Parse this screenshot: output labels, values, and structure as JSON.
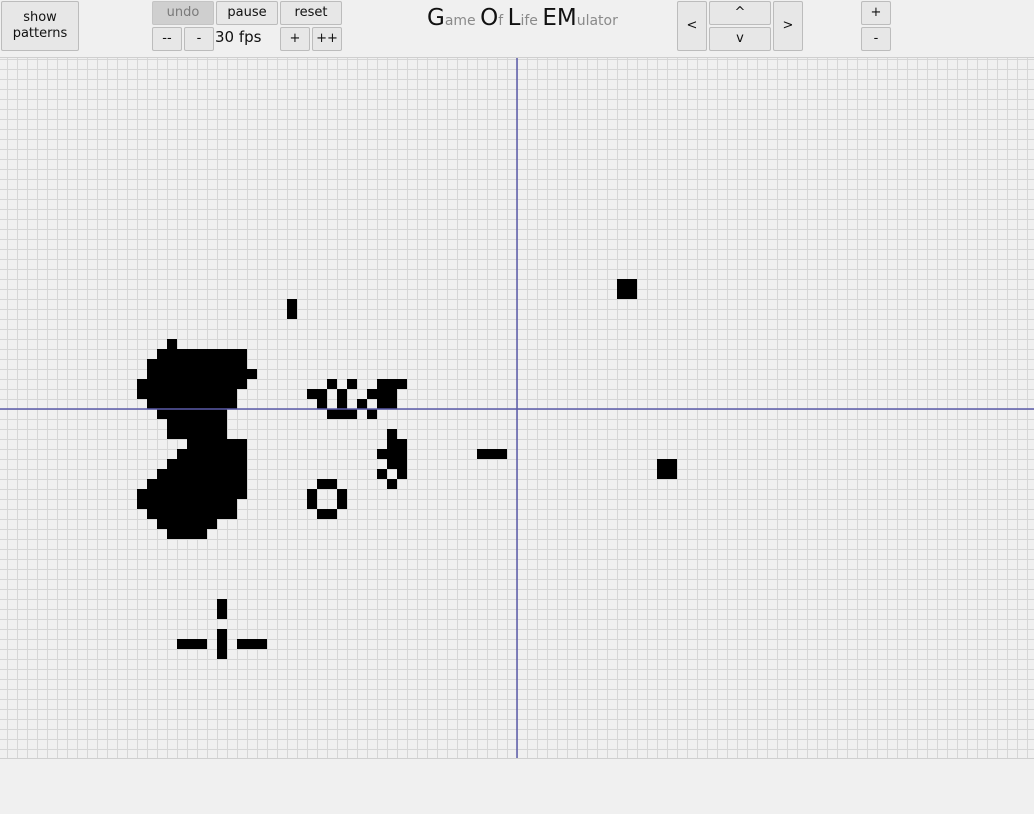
{
  "toolbar": {
    "show_patterns_label": "show\npatterns",
    "undo_label": "undo",
    "pause_label": "pause",
    "reset_label": "reset",
    "slowest_label": "--",
    "slower_label": "-",
    "fps_text": "30 fps",
    "faster_label": "+",
    "fastest_label": "++"
  },
  "title": {
    "parts": [
      {
        "text": "G",
        "size": "big"
      },
      {
        "text": "ame ",
        "size": "small"
      },
      {
        "text": "O",
        "size": "big"
      },
      {
        "text": "f ",
        "size": "small"
      },
      {
        "text": "L",
        "size": "big"
      },
      {
        "text": "ife ",
        "size": "small"
      },
      {
        "text": "EM",
        "size": "big"
      },
      {
        "text": "ulator",
        "size": "small"
      }
    ]
  },
  "navigation": {
    "left_label": "<",
    "up_label": "^",
    "down_label": "v",
    "right_label": ">"
  },
  "zoom": {
    "in_label": "+",
    "out_label": "-"
  },
  "board": {
    "colors": {
      "background": "#f0f0f0",
      "grid_line": "#d6d6d6",
      "axis_line": "#5a5aa8",
      "live_cell": "#000000"
    },
    "axis_origin_cell": [
      51,
      35
    ],
    "live_cells": [
      [
        16,
        28
      ],
      [
        15,
        29
      ],
      [
        16,
        29
      ],
      [
        17,
        29
      ],
      [
        18,
        29
      ],
      [
        19,
        29
      ],
      [
        20,
        29
      ],
      [
        21,
        29
      ],
      [
        22,
        29
      ],
      [
        23,
        29
      ],
      [
        14,
        30
      ],
      [
        15,
        30
      ],
      [
        16,
        30
      ],
      [
        17,
        30
      ],
      [
        18,
        30
      ],
      [
        19,
        30
      ],
      [
        20,
        30
      ],
      [
        21,
        30
      ],
      [
        22,
        30
      ],
      [
        23,
        30
      ],
      [
        14,
        31
      ],
      [
        15,
        31
      ],
      [
        16,
        31
      ],
      [
        17,
        31
      ],
      [
        18,
        31
      ],
      [
        19,
        31
      ],
      [
        20,
        31
      ],
      [
        21,
        31
      ],
      [
        22,
        31
      ],
      [
        23,
        31
      ],
      [
        24,
        31
      ],
      [
        13,
        32
      ],
      [
        14,
        32
      ],
      [
        15,
        32
      ],
      [
        16,
        32
      ],
      [
        17,
        32
      ],
      [
        18,
        32
      ],
      [
        19,
        32
      ],
      [
        20,
        32
      ],
      [
        21,
        32
      ],
      [
        22,
        32
      ],
      [
        23,
        32
      ],
      [
        13,
        33
      ],
      [
        14,
        33
      ],
      [
        15,
        33
      ],
      [
        16,
        33
      ],
      [
        17,
        33
      ],
      [
        18,
        33
      ],
      [
        19,
        33
      ],
      [
        20,
        33
      ],
      [
        21,
        33
      ],
      [
        22,
        33
      ],
      [
        14,
        34
      ],
      [
        15,
        34
      ],
      [
        16,
        34
      ],
      [
        17,
        34
      ],
      [
        18,
        34
      ],
      [
        19,
        34
      ],
      [
        20,
        34
      ],
      [
        21,
        34
      ],
      [
        22,
        34
      ],
      [
        15,
        35
      ],
      [
        16,
        35
      ],
      [
        17,
        35
      ],
      [
        18,
        35
      ],
      [
        19,
        35
      ],
      [
        20,
        35
      ],
      [
        21,
        35
      ],
      [
        16,
        36
      ],
      [
        17,
        36
      ],
      [
        18,
        36
      ],
      [
        19,
        36
      ],
      [
        20,
        36
      ],
      [
        21,
        36
      ],
      [
        16,
        37
      ],
      [
        17,
        37
      ],
      [
        18,
        37
      ],
      [
        19,
        37
      ],
      [
        20,
        37
      ],
      [
        21,
        37
      ],
      [
        18,
        38
      ],
      [
        19,
        38
      ],
      [
        20,
        38
      ],
      [
        21,
        38
      ],
      [
        22,
        38
      ],
      [
        23,
        38
      ],
      [
        17,
        39
      ],
      [
        18,
        39
      ],
      [
        19,
        39
      ],
      [
        20,
        39
      ],
      [
        21,
        39
      ],
      [
        22,
        39
      ],
      [
        23,
        39
      ],
      [
        16,
        40
      ],
      [
        17,
        40
      ],
      [
        18,
        40
      ],
      [
        19,
        40
      ],
      [
        20,
        40
      ],
      [
        21,
        40
      ],
      [
        22,
        40
      ],
      [
        23,
        40
      ],
      [
        15,
        41
      ],
      [
        16,
        41
      ],
      [
        17,
        41
      ],
      [
        18,
        41
      ],
      [
        19,
        41
      ],
      [
        20,
        41
      ],
      [
        21,
        41
      ],
      [
        22,
        41
      ],
      [
        23,
        41
      ],
      [
        14,
        42
      ],
      [
        15,
        42
      ],
      [
        16,
        42
      ],
      [
        17,
        42
      ],
      [
        18,
        42
      ],
      [
        19,
        42
      ],
      [
        20,
        42
      ],
      [
        21,
        42
      ],
      [
        22,
        42
      ],
      [
        23,
        42
      ],
      [
        13,
        43
      ],
      [
        14,
        43
      ],
      [
        15,
        43
      ],
      [
        16,
        43
      ],
      [
        17,
        43
      ],
      [
        18,
        43
      ],
      [
        19,
        43
      ],
      [
        20,
        43
      ],
      [
        21,
        43
      ],
      [
        22,
        43
      ],
      [
        23,
        43
      ],
      [
        13,
        44
      ],
      [
        14,
        44
      ],
      [
        15,
        44
      ],
      [
        16,
        44
      ],
      [
        17,
        44
      ],
      [
        18,
        44
      ],
      [
        19,
        44
      ],
      [
        20,
        44
      ],
      [
        21,
        44
      ],
      [
        22,
        44
      ],
      [
        14,
        45
      ],
      [
        15,
        45
      ],
      [
        16,
        45
      ],
      [
        17,
        45
      ],
      [
        18,
        45
      ],
      [
        19,
        45
      ],
      [
        20,
        45
      ],
      [
        21,
        45
      ],
      [
        22,
        45
      ],
      [
        15,
        46
      ],
      [
        16,
        46
      ],
      [
        17,
        46
      ],
      [
        18,
        46
      ],
      [
        19,
        46
      ],
      [
        20,
        46
      ],
      [
        16,
        47
      ],
      [
        17,
        47
      ],
      [
        18,
        47
      ],
      [
        19,
        47
      ],
      [
        28,
        24
      ],
      [
        28,
        25
      ],
      [
        61,
        22
      ],
      [
        62,
        22
      ],
      [
        61,
        23
      ],
      [
        62,
        23
      ],
      [
        65,
        40
      ],
      [
        66,
        40
      ],
      [
        65,
        41
      ],
      [
        66,
        41
      ],
      [
        47,
        39
      ],
      [
        48,
        39
      ],
      [
        49,
        39
      ],
      [
        38,
        37
      ],
      [
        38,
        38
      ],
      [
        39,
        38
      ],
      [
        39,
        39
      ],
      [
        38,
        39
      ],
      [
        37,
        39
      ],
      [
        38,
        40
      ],
      [
        39,
        40
      ],
      [
        37,
        41
      ],
      [
        39,
        41
      ],
      [
        38,
        42
      ],
      [
        31,
        42
      ],
      [
        32,
        42
      ],
      [
        30,
        43
      ],
      [
        33,
        43
      ],
      [
        30,
        44
      ],
      [
        33,
        44
      ],
      [
        31,
        45
      ],
      [
        32,
        45
      ],
      [
        32,
        32
      ],
      [
        34,
        32
      ],
      [
        37,
        32
      ],
      [
        38,
        32
      ],
      [
        39,
        32
      ],
      [
        30,
        33
      ],
      [
        31,
        33
      ],
      [
        33,
        33
      ],
      [
        36,
        33
      ],
      [
        37,
        33
      ],
      [
        38,
        33
      ],
      [
        31,
        34
      ],
      [
        33,
        34
      ],
      [
        35,
        34
      ],
      [
        37,
        34
      ],
      [
        38,
        34
      ],
      [
        32,
        35
      ],
      [
        33,
        35
      ],
      [
        34,
        35
      ],
      [
        36,
        35
      ],
      [
        21,
        54
      ],
      [
        21,
        55
      ],
      [
        21,
        57
      ],
      [
        21,
        58
      ],
      [
        21,
        59
      ],
      [
        17,
        58
      ],
      [
        18,
        58
      ],
      [
        19,
        58
      ],
      [
        23,
        58
      ],
      [
        24,
        58
      ],
      [
        25,
        58
      ]
    ]
  }
}
